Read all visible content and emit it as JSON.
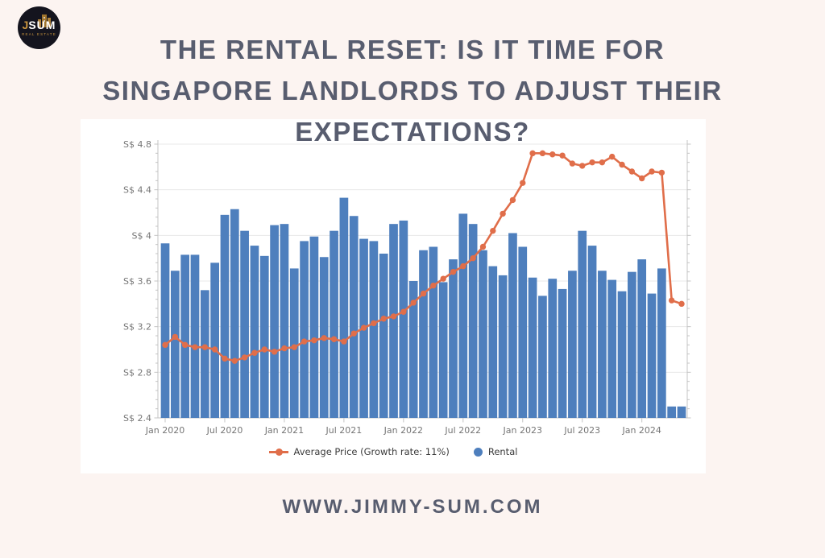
{
  "page": {
    "background": "#fcf4f1",
    "footer": "WWW.JIMMY-SUM.COM"
  },
  "logo": {
    "j": "J",
    "sum": "SUM",
    "tagline": "REAL ESTATE",
    "circle_color": "#14141e",
    "gold_color": "#c9953e"
  },
  "title": {
    "line1": "THE RENTAL RESET: IS IT TIME FOR",
    "line2": "SINGAPORE LANDLORDS TO ADJUST THEIR",
    "line3": "EXPECTATIONS?",
    "color": "#585d6f"
  },
  "chart_data": {
    "type": "bar",
    "title": "",
    "xlabel": "",
    "ylabel": "S$",
    "ylim": [
      2.4,
      4.8
    ],
    "grid": true,
    "legend_position": "bottom",
    "x": [
      "Jan 2020",
      "Feb 2020",
      "Mar 2020",
      "Apr 2020",
      "May 2020",
      "Jun 2020",
      "Jul 2020",
      "Aug 2020",
      "Sep 2020",
      "Oct 2020",
      "Nov 2020",
      "Dec 2020",
      "Jan 2021",
      "Feb 2021",
      "Mar 2021",
      "Apr 2021",
      "May 2021",
      "Jun 2021",
      "Jul 2021",
      "Aug 2021",
      "Sep 2021",
      "Oct 2021",
      "Nov 2021",
      "Dec 2021",
      "Jan 2022",
      "Feb 2022",
      "Mar 2022",
      "Apr 2022",
      "May 2022",
      "Jun 2022",
      "Jul 2022",
      "Aug 2022",
      "Sep 2022",
      "Oct 2022",
      "Nov 2022",
      "Dec 2022",
      "Jan 2023",
      "Feb 2023",
      "Mar 2023",
      "Apr 2023",
      "May 2023",
      "Jun 2023",
      "Jul 2023",
      "Aug 2023",
      "Sep 2023",
      "Oct 2023",
      "Nov 2023",
      "Dec 2023",
      "Jan 2024",
      "Feb 2024",
      "Mar 2024",
      "Apr 2024",
      "May 2024"
    ],
    "series": [
      {
        "name": "Average Price (Growth rate: 11%)",
        "type": "line",
        "color": "#e06e4a",
        "values": [
          3.04,
          3.11,
          3.04,
          3.02,
          3.02,
          3.0,
          2.92,
          2.9,
          2.93,
          2.97,
          3.0,
          2.98,
          3.01,
          3.02,
          3.07,
          3.08,
          3.1,
          3.09,
          3.07,
          3.14,
          3.19,
          3.23,
          3.27,
          3.29,
          3.33,
          3.41,
          3.49,
          3.56,
          3.62,
          3.68,
          3.73,
          3.8,
          3.9,
          4.04,
          4.19,
          4.31,
          4.46,
          4.72,
          4.72,
          4.71,
          4.7,
          4.63,
          4.61,
          4.64,
          4.64,
          4.69,
          4.62,
          4.56,
          4.5,
          4.56,
          4.55,
          3.43,
          3.4
        ]
      },
      {
        "name": "Rental",
        "type": "bar",
        "color": "#4e7fbd",
        "values": [
          3.93,
          3.69,
          3.83,
          3.83,
          3.52,
          3.76,
          4.18,
          4.23,
          4.04,
          3.91,
          3.82,
          4.09,
          4.1,
          3.71,
          3.95,
          3.99,
          3.81,
          4.04,
          4.33,
          4.17,
          3.97,
          3.95,
          3.84,
          4.1,
          4.13,
          3.6,
          3.87,
          3.9,
          3.59,
          3.79,
          4.19,
          4.1,
          3.87,
          3.73,
          3.65,
          4.02,
          3.9,
          3.63,
          3.47,
          3.62,
          3.53,
          3.69,
          4.04,
          3.91,
          3.69,
          3.61,
          3.51,
          3.68,
          3.79,
          3.49,
          3.71,
          2.5,
          2.5
        ]
      }
    ],
    "ytick_values": [
      4.8,
      4.4,
      4.0,
      3.6,
      3.2,
      2.8,
      2.4
    ],
    "ytick_labels": [
      "S$ 4.8",
      "S$ 4.4",
      "S$ 4",
      "S$ 3.6",
      "S$ 3.2",
      "S$ 2.8",
      "S$ 2.4"
    ],
    "xtick_every": 6,
    "xtick_labels": [
      "Jan 2020",
      "Jul 2020",
      "Jan 2021",
      "Jul 2021",
      "Jan 2022",
      "Jul 2022",
      "Jan 2023",
      "Jul 2023",
      "Jan 2024"
    ],
    "axis_color": "#c4c4c4",
    "grid_color": "#e8e8e8",
    "tick_label_color": "#757575"
  }
}
